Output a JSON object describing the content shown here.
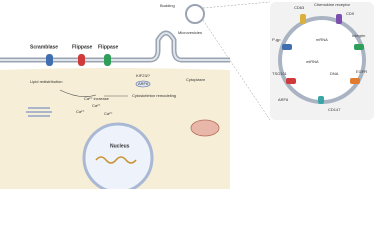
{
  "left_panel": {
    "proteins": [
      "Scramblase",
      "Flippase",
      "Flippase"
    ],
    "lipid_label": "Lipid redistribution",
    "budding": "Budding",
    "microvesicles": "Microvesicles",
    "kif": "KIF23/?",
    "arf6": "ARF6",
    "cytoplasm": "Cytoplasm",
    "calcium_increase": "Ca²⁺ increase",
    "calcium_ions": [
      "Ca²⁺",
      "Ca²⁺",
      "Ca²⁺"
    ],
    "cytoskeleton": "Cytoskeleton remodeling",
    "nucleus": "Nucleus"
  },
  "right_panel": {
    "markers": [
      "CD63",
      "Chemokine receptor",
      "CD9",
      "P-gp",
      "Integrin",
      "EGFR",
      "TSG101",
      "ARF6",
      "CD147"
    ],
    "cargo": [
      "mRNA",
      "miRNA",
      "DNA"
    ]
  }
}
